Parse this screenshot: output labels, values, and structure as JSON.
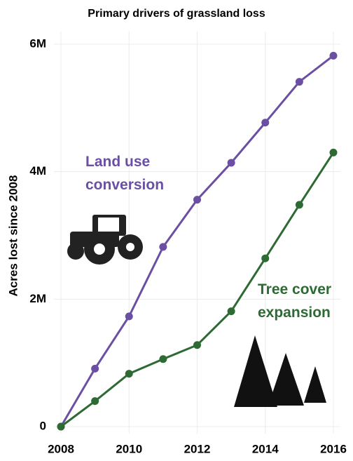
{
  "chart_data": {
    "type": "line",
    "title": "Primary drivers of grassland loss",
    "y_label": "Acres lost since 2008",
    "x": [
      2008,
      2009,
      2010,
      2011,
      2012,
      2013,
      2014,
      2015,
      2016
    ],
    "series": [
      {
        "name": "Land use conversion",
        "color": "#6a4fa3",
        "values": [
          0,
          910000,
          1730000,
          2820000,
          3560000,
          4140000,
          4770000,
          5410000,
          5820000
        ]
      },
      {
        "name": "Tree cover expansion",
        "color": "#2d6a34",
        "values": [
          0,
          400000,
          830000,
          1060000,
          1280000,
          1810000,
          2640000,
          3480000,
          4300000
        ]
      }
    ],
    "xlim": [
      2008,
      2016
    ],
    "xticks": [
      2008,
      2010,
      2012,
      2014,
      2016
    ],
    "ylim": [
      0,
      6000000
    ],
    "yticks": [
      0,
      {
        "value": 2000000,
        "label": "2M"
      },
      {
        "value": 4000000,
        "label": "4M"
      },
      {
        "value": 6000000,
        "label": "6M"
      }
    ],
    "grid": true
  }
}
